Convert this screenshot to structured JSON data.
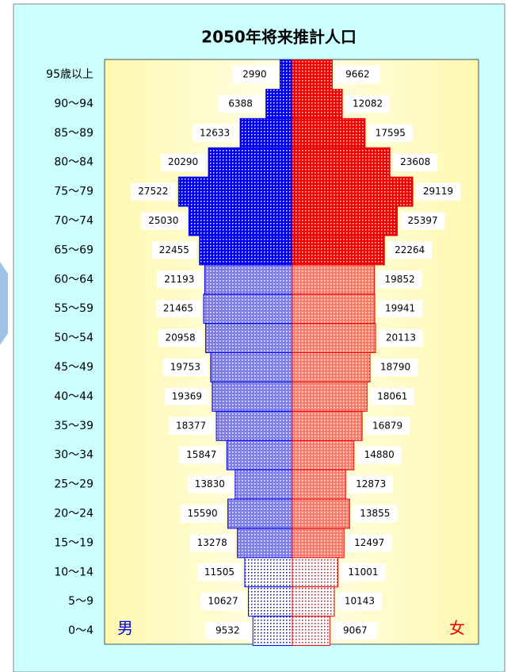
{
  "chart_data": {
    "type": "population-pyramid",
    "title": "2050年将来推計人口",
    "categories": [
      "95歳以上",
      "90〜94",
      "85〜89",
      "80〜84",
      "75〜79",
      "70〜74",
      "65〜69",
      "60〜64",
      "55〜59",
      "50〜54",
      "45〜49",
      "40〜44",
      "35〜39",
      "30〜34",
      "25〜29",
      "20〜24",
      "15〜19",
      "10〜14",
      "5〜9",
      "0〜4"
    ],
    "series": [
      {
        "name": "男",
        "color": "#0000ee",
        "values": [
          2990,
          6388,
          12633,
          20290,
          27522,
          25030,
          22455,
          21193,
          21465,
          20958,
          19753,
          19369,
          18377,
          15847,
          13830,
          15590,
          13278,
          11505,
          10627,
          9532
        ]
      },
      {
        "name": "女",
        "color": "#ee0000",
        "values": [
          9662,
          12082,
          17595,
          23608,
          29119,
          25397,
          22264,
          19852,
          19941,
          20113,
          18790,
          18061,
          16879,
          14880,
          12873,
          13855,
          12497,
          11001,
          10143,
          9067
        ]
      }
    ]
  }
}
